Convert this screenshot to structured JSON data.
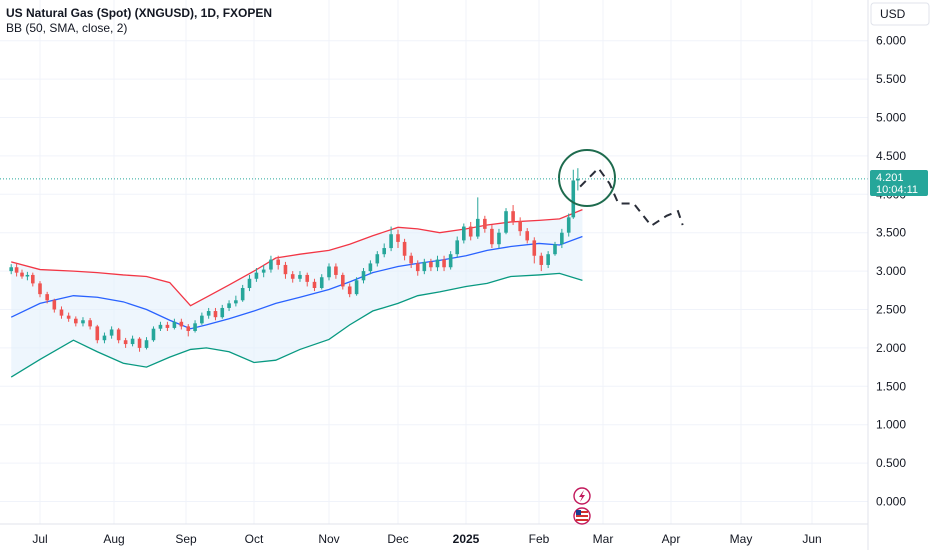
{
  "header": {
    "symbol_title": "US Natural Gas (Spot) (XNGUSD), 1D, FXOPEN",
    "indicator": "BB (50, SMA, close, 2)"
  },
  "axis": {
    "currency": "USD",
    "price_ticks": [
      "6.000",
      "5.500",
      "5.000",
      "4.500",
      "4.000",
      "3.500",
      "3.000",
      "2.500",
      "2.000",
      "1.500",
      "1.000",
      "0.500",
      "0.000"
    ],
    "time_ticks": [
      "Jul",
      "Aug",
      "Sep",
      "Oct",
      "Nov",
      "Dec",
      "2025",
      "Feb",
      "Mar",
      "Apr",
      "May",
      "Jun"
    ]
  },
  "price_label": {
    "price": "4.201",
    "countdown": "10:04:11"
  },
  "colors": {
    "up": "#26a69a",
    "down": "#ef5350",
    "upper_band": "#f23645",
    "basis": "#2962ff",
    "lower_band": "#089981",
    "band_fill": "#e3f0fb",
    "price_line": "#26a69a",
    "circle": "#1e6b4e",
    "projection": "#2a2e39"
  },
  "icons": [
    "lightning-icon",
    "us-flag-icon"
  ],
  "chart_data": {
    "type": "candlestick",
    "ylim": [
      0,
      6.25
    ],
    "last_price": 4.201,
    "series": [
      {
        "name": "BB upper",
        "points": [
          [
            "Jun 15",
            3.12
          ],
          [
            "Jul 1",
            3.02
          ],
          [
            "Jul 15",
            3.0
          ],
          [
            "Jul 25",
            2.98
          ],
          [
            "Aug 5",
            2.95
          ],
          [
            "Aug 15",
            2.93
          ],
          [
            "Aug 25",
            2.85
          ],
          [
            "Sep 3",
            2.55
          ],
          [
            "Sep 10",
            2.66
          ],
          [
            "Sep 20",
            2.82
          ],
          [
            "Oct 1",
            3.0
          ],
          [
            "Oct 10",
            3.17
          ],
          [
            "Oct 20",
            3.22
          ],
          [
            "Nov 1",
            3.27
          ],
          [
            "Nov 10",
            3.35
          ],
          [
            "Nov 20",
            3.46
          ],
          [
            "Dec 1",
            3.57
          ],
          [
            "Dec 10",
            3.55
          ],
          [
            "Dec 20",
            3.5
          ],
          [
            "Jan 1",
            3.55
          ],
          [
            "Jan 10",
            3.6
          ],
          [
            "Jan 20",
            3.64
          ],
          [
            "Feb 1",
            3.66
          ],
          [
            "Feb 10",
            3.68
          ],
          [
            "Feb 20",
            3.8
          ]
        ]
      },
      {
        "name": "BB basis",
        "points": [
          [
            "Jun 15",
            2.4
          ],
          [
            "Jul 1",
            2.58
          ],
          [
            "Jul 15",
            2.68
          ],
          [
            "Jul 25",
            2.66
          ],
          [
            "Aug 5",
            2.6
          ],
          [
            "Aug 15",
            2.5
          ],
          [
            "Aug 25",
            2.36
          ],
          [
            "Sep 3",
            2.25
          ],
          [
            "Sep 10",
            2.3
          ],
          [
            "Sep 20",
            2.38
          ],
          [
            "Oct 1",
            2.48
          ],
          [
            "Oct 10",
            2.58
          ],
          [
            "Oct 20",
            2.66
          ],
          [
            "Nov 1",
            2.76
          ],
          [
            "Nov 10",
            2.86
          ],
          [
            "Nov 20",
            2.98
          ],
          [
            "Dec 1",
            3.06
          ],
          [
            "Dec 10",
            3.1
          ],
          [
            "Dec 20",
            3.14
          ],
          [
            "Jan 1",
            3.2
          ],
          [
            "Jan 10",
            3.27
          ],
          [
            "Jan 20",
            3.32
          ],
          [
            "Feb 1",
            3.36
          ],
          [
            "Feb 10",
            3.34
          ],
          [
            "Feb 20",
            3.45
          ]
        ]
      },
      {
        "name": "BB lower",
        "points": [
          [
            "Jun 15",
            1.62
          ],
          [
            "Jul 1",
            1.85
          ],
          [
            "Jul 15",
            2.1
          ],
          [
            "Jul 25",
            1.95
          ],
          [
            "Aug 5",
            1.8
          ],
          [
            "Aug 15",
            1.75
          ],
          [
            "Aug 25",
            1.88
          ],
          [
            "Sep 3",
            1.98
          ],
          [
            "Sep 10",
            2.0
          ],
          [
            "Sep 20",
            1.95
          ],
          [
            "Oct 1",
            1.81
          ],
          [
            "Oct 10",
            1.84
          ],
          [
            "Oct 20",
            1.98
          ],
          [
            "Nov 1",
            2.11
          ],
          [
            "Nov 10",
            2.3
          ],
          [
            "Nov 20",
            2.48
          ],
          [
            "Dec 1",
            2.58
          ],
          [
            "Dec 10",
            2.68
          ],
          [
            "Dec 20",
            2.73
          ],
          [
            "Jan 1",
            2.8
          ],
          [
            "Jan 10",
            2.84
          ],
          [
            "Jan 20",
            2.93
          ],
          [
            "Feb 1",
            2.95
          ],
          [
            "Feb 10",
            2.97
          ],
          [
            "Feb 20",
            2.88
          ]
        ]
      },
      {
        "name": "Projection",
        "points": [
          [
            "Feb 19",
            4.1
          ],
          [
            "Feb 27",
            4.34
          ],
          [
            "Mar 4",
            4.14
          ],
          [
            "Mar 8",
            3.88
          ],
          [
            "Mar 15",
            3.88
          ],
          [
            "Mar 23",
            3.59
          ],
          [
            "Mar 30",
            3.72
          ],
          [
            "Apr 4",
            3.78
          ],
          [
            "Apr 6",
            3.6
          ]
        ]
      }
    ],
    "candles": [
      [
        "Jun 15",
        3.0,
        3.05,
        3.09,
        2.96
      ],
      [
        "Jun 18",
        3.05,
        2.98,
        3.1,
        2.93
      ],
      [
        "Jun 21",
        2.98,
        2.93,
        3.02,
        2.9
      ],
      [
        "Jun 24",
        2.93,
        2.95,
        2.99,
        2.88
      ],
      [
        "Jun 27",
        2.95,
        2.84,
        2.98,
        2.8
      ],
      [
        "Jul 1",
        2.84,
        2.7,
        2.87,
        2.66
      ],
      [
        "Jul 4",
        2.7,
        2.62,
        2.73,
        2.58
      ],
      [
        "Jul 7",
        2.62,
        2.5,
        2.64,
        2.46
      ],
      [
        "Jul 10",
        2.5,
        2.42,
        2.54,
        2.38
      ],
      [
        "Jul 13",
        2.42,
        2.38,
        2.46,
        2.34
      ],
      [
        "Jul 16",
        2.38,
        2.32,
        2.41,
        2.28
      ],
      [
        "Jul 19",
        2.32,
        2.36,
        2.4,
        2.28
      ],
      [
        "Jul 22",
        2.36,
        2.28,
        2.39,
        2.24
      ],
      [
        "Jul 25",
        2.28,
        2.1,
        2.3,
        2.06
      ],
      [
        "Jul 28",
        2.1,
        2.16,
        2.2,
        2.06
      ],
      [
        "Jul 31",
        2.16,
        2.24,
        2.28,
        2.12
      ],
      [
        "Aug 3",
        2.24,
        2.1,
        2.26,
        2.06
      ],
      [
        "Aug 6",
        2.1,
        2.05,
        2.13,
        2.0
      ],
      [
        "Aug 9",
        2.05,
        2.12,
        2.16,
        2.02
      ],
      [
        "Aug 12",
        2.12,
        2.0,
        2.14,
        1.95
      ],
      [
        "Aug 15",
        2.0,
        2.1,
        2.14,
        1.98
      ],
      [
        "Aug 18",
        2.1,
        2.25,
        2.28,
        2.08
      ],
      [
        "Aug 21",
        2.25,
        2.3,
        2.34,
        2.22
      ],
      [
        "Aug 24",
        2.3,
        2.26,
        2.34,
        2.22
      ],
      [
        "Aug 27",
        2.26,
        2.34,
        2.38,
        2.24
      ],
      [
        "Aug 30",
        2.34,
        2.28,
        2.38,
        2.24
      ],
      [
        "Sep 2",
        2.28,
        2.22,
        2.31,
        2.15
      ],
      [
        "Sep 5",
        2.22,
        2.32,
        2.36,
        2.2
      ],
      [
        "Sep 8",
        2.32,
        2.42,
        2.46,
        2.3
      ],
      [
        "Sep 11",
        2.42,
        2.48,
        2.52,
        2.38
      ],
      [
        "Sep 14",
        2.48,
        2.4,
        2.52,
        2.36
      ],
      [
        "Sep 17",
        2.4,
        2.52,
        2.56,
        2.38
      ],
      [
        "Sep 20",
        2.52,
        2.58,
        2.62,
        2.48
      ],
      [
        "Sep 23",
        2.58,
        2.62,
        2.68,
        2.54
      ],
      [
        "Sep 26",
        2.62,
        2.78,
        2.82,
        2.6
      ],
      [
        "Sep 29",
        2.78,
        2.9,
        2.95,
        2.74
      ],
      [
        "Oct 2",
        2.9,
        2.98,
        3.04,
        2.86
      ],
      [
        "Oct 5",
        2.98,
        3.02,
        3.08,
        2.92
      ],
      [
        "Oct 8",
        3.02,
        3.15,
        3.2,
        2.98
      ],
      [
        "Oct 11",
        3.15,
        3.08,
        3.2,
        3.02
      ],
      [
        "Oct 14",
        3.08,
        2.96,
        3.12,
        2.9
      ],
      [
        "Oct 17",
        2.96,
        2.9,
        3.0,
        2.85
      ],
      [
        "Oct 20",
        2.9,
        2.95,
        3.0,
        2.86
      ],
      [
        "Oct 23",
        2.95,
        2.86,
        2.98,
        2.8
      ],
      [
        "Oct 26",
        2.86,
        2.78,
        2.9,
        2.74
      ],
      [
        "Oct 29",
        2.78,
        2.92,
        2.96,
        2.76
      ],
      [
        "Nov 1",
        2.92,
        3.06,
        3.1,
        2.88
      ],
      [
        "Nov 4",
        3.06,
        2.95,
        3.1,
        2.9
      ],
      [
        "Nov 7",
        2.95,
        2.8,
        2.98,
        2.76
      ],
      [
        "Nov 10",
        2.8,
        2.7,
        2.84,
        2.66
      ],
      [
        "Nov 13",
        2.7,
        2.88,
        2.92,
        2.68
      ],
      [
        "Nov 16",
        2.88,
        3.0,
        3.04,
        2.84
      ],
      [
        "Nov 19",
        3.0,
        3.1,
        3.14,
        2.96
      ],
      [
        "Nov 22",
        3.1,
        3.22,
        3.26,
        3.06
      ],
      [
        "Nov 25",
        3.22,
        3.3,
        3.36,
        3.18
      ],
      [
        "Nov 28",
        3.3,
        3.48,
        3.58,
        3.26
      ],
      [
        "Dec 1",
        3.48,
        3.38,
        3.54,
        3.3
      ],
      [
        "Dec 4",
        3.38,
        3.2,
        3.42,
        3.14
      ],
      [
        "Dec 7",
        3.2,
        3.1,
        3.24,
        3.04
      ],
      [
        "Dec 10",
        3.1,
        3.0,
        3.14,
        2.94
      ],
      [
        "Dec 13",
        3.0,
        3.12,
        3.16,
        2.96
      ],
      [
        "Dec 16",
        3.12,
        3.05,
        3.16,
        3.0
      ],
      [
        "Dec 19",
        3.05,
        3.15,
        3.2,
        3.0
      ],
      [
        "Dec 22",
        3.15,
        3.05,
        3.2,
        3.0
      ],
      [
        "Dec 25",
        3.05,
        3.22,
        3.26,
        3.02
      ],
      [
        "Dec 28",
        3.22,
        3.4,
        3.45,
        3.18
      ],
      [
        "Dec 31",
        3.4,
        3.58,
        3.62,
        3.36
      ],
      [
        "Jan 3",
        3.58,
        3.45,
        3.64,
        3.4
      ],
      [
        "Jan 6",
        3.45,
        3.68,
        3.96,
        3.42
      ],
      [
        "Jan 9",
        3.68,
        3.55,
        3.72,
        3.5
      ],
      [
        "Jan 12",
        3.55,
        3.35,
        3.6,
        3.3
      ],
      [
        "Jan 15",
        3.35,
        3.5,
        3.55,
        3.3
      ],
      [
        "Jan 18",
        3.5,
        3.78,
        3.82,
        3.48
      ],
      [
        "Jan 21",
        3.78,
        3.65,
        3.86,
        3.6
      ],
      [
        "Jan 24",
        3.65,
        3.52,
        3.7,
        3.46
      ],
      [
        "Jan 27",
        3.52,
        3.4,
        3.56,
        3.36
      ],
      [
        "Jan 30",
        3.4,
        3.2,
        3.44,
        3.1
      ],
      [
        "Feb 2",
        3.2,
        3.08,
        3.24,
        3.0
      ],
      [
        "Feb 5",
        3.08,
        3.22,
        3.26,
        3.04
      ],
      [
        "Feb 8",
        3.22,
        3.35,
        3.38,
        3.2
      ],
      [
        "Feb 11",
        3.35,
        3.5,
        3.55,
        3.3
      ],
      [
        "Feb 14",
        3.5,
        3.7,
        3.75,
        3.45
      ],
      [
        "Feb 16",
        3.7,
        4.18,
        4.32,
        3.68
      ],
      [
        "Feb 18",
        4.18,
        4.2,
        4.34,
        4.05
      ]
    ]
  }
}
